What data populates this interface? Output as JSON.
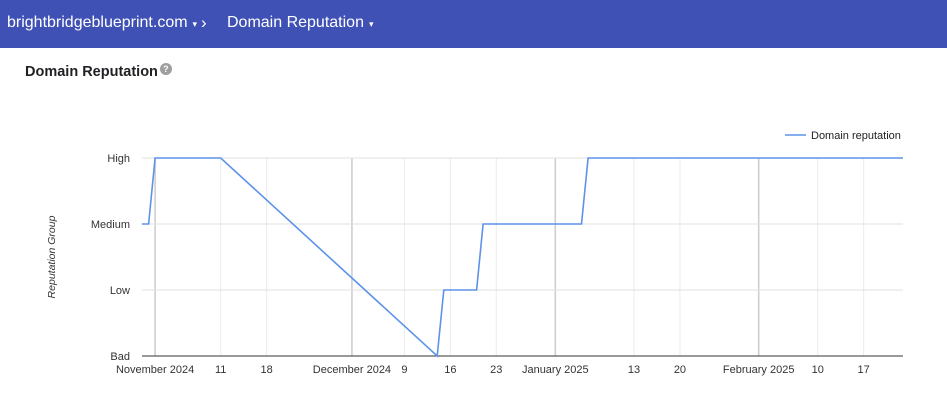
{
  "header": {
    "domain": "brightbridgeblueprint.com",
    "separator": "›",
    "page": "Domain Reputation",
    "caret": "▾"
  },
  "page_title": "Domain Reputation",
  "help_icon": "question-mark-icon",
  "colors": {
    "header_bg": "#3f51b5",
    "series": "#5c93e8"
  },
  "chart_data": {
    "type": "line",
    "title": "",
    "ylabel": "Reputation Group",
    "y_categories": [
      "Bad",
      "Low",
      "Medium",
      "High"
    ],
    "x_tick_labels": [
      {
        "label": "November 2024",
        "date": "2024-11-01"
      },
      {
        "label": "11",
        "date": "2024-11-11"
      },
      {
        "label": "18",
        "date": "2024-11-18"
      },
      {
        "label": "December 2024",
        "date": "2024-12-01"
      },
      {
        "label": "9",
        "date": "2024-12-09"
      },
      {
        "label": "16",
        "date": "2024-12-16"
      },
      {
        "label": "23",
        "date": "2024-12-23"
      },
      {
        "label": "January 2025",
        "date": "2025-01-01"
      },
      {
        "label": "13",
        "date": "2025-01-13"
      },
      {
        "label": "20",
        "date": "2025-01-20"
      },
      {
        "label": "February 2025",
        "date": "2025-02-01"
      },
      {
        "label": "10",
        "date": "2025-02-10"
      },
      {
        "label": "17",
        "date": "2025-02-17"
      }
    ],
    "xlim": [
      "2024-10-30",
      "2025-02-23"
    ],
    "grid": true,
    "legend_position": "top-right",
    "series": [
      {
        "name": "Domain reputation",
        "points": [
          {
            "x": "2024-10-30",
            "y": "Medium"
          },
          {
            "x": "2024-10-31",
            "y": "Medium"
          },
          {
            "x": "2024-11-01",
            "y": "High"
          },
          {
            "x": "2024-11-11",
            "y": "High"
          },
          {
            "x": "2024-12-14",
            "y": "Bad"
          },
          {
            "x": "2024-12-15",
            "y": "Low"
          },
          {
            "x": "2024-12-20",
            "y": "Low"
          },
          {
            "x": "2024-12-21",
            "y": "Medium"
          },
          {
            "x": "2025-01-05",
            "y": "Medium"
          },
          {
            "x": "2025-01-06",
            "y": "High"
          },
          {
            "x": "2025-02-23",
            "y": "High"
          }
        ]
      }
    ]
  }
}
